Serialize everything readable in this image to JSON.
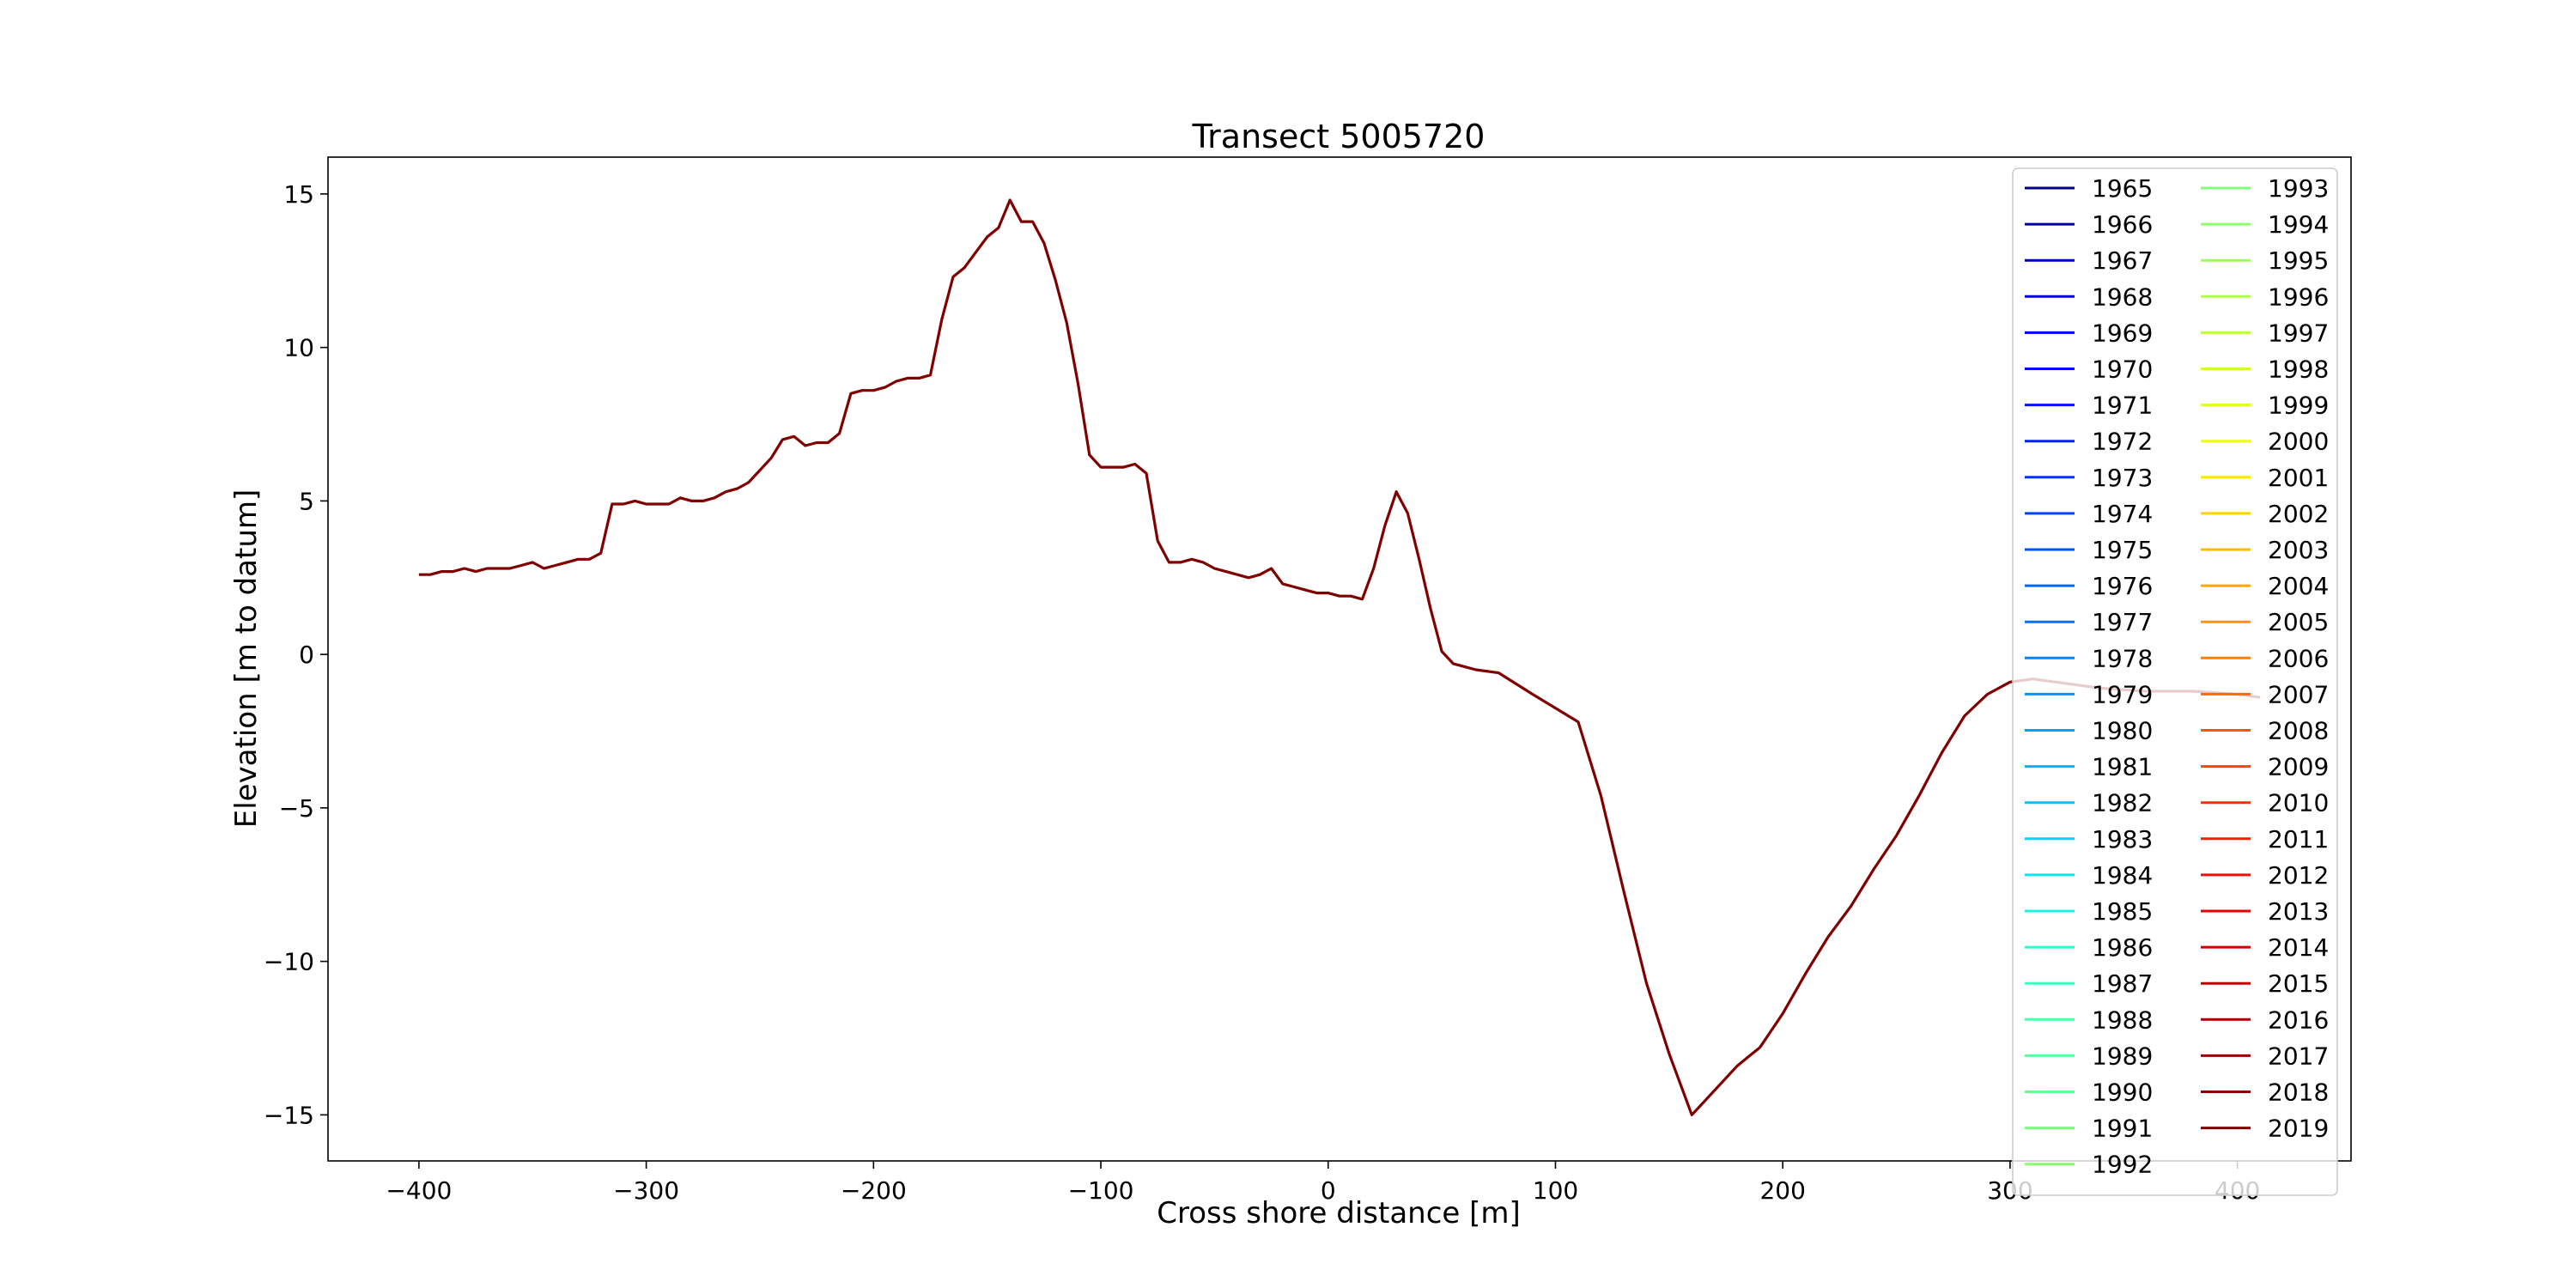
{
  "chart_data": {
    "type": "line",
    "title": "Transect 5005720",
    "xlabel": "Cross shore distance [m]",
    "ylabel": "Elevation [m to datum]",
    "xlim": [
      -440,
      450
    ],
    "ylim": [
      -16.5,
      16.2
    ],
    "xticks": [
      -400,
      -300,
      -200,
      -100,
      0,
      100,
      200,
      300,
      400
    ],
    "yticks": [
      15,
      10,
      5,
      0,
      -5,
      -10,
      -15
    ],
    "xtick_labels": [
      "−400",
      "−300",
      "−200",
      "−100",
      "0",
      "100",
      "200",
      "300",
      "400"
    ],
    "ytick_labels": [
      "15",
      "10",
      "5",
      "0",
      "−5",
      "−10",
      "−15"
    ],
    "legend_position": "top-right",
    "legend_columns": 2,
    "series": [
      {
        "name": "1965",
        "color": "#000080"
      },
      {
        "name": "1966",
        "color": "#00009e"
      },
      {
        "name": "1967",
        "color": "#0000bf"
      },
      {
        "name": "1968",
        "color": "#0000df"
      },
      {
        "name": "1969",
        "color": "#0000ff"
      },
      {
        "name": "1970",
        "color": "#0008ff"
      },
      {
        "name": "1971",
        "color": "#0014ff"
      },
      {
        "name": "1972",
        "color": "#0024ff"
      },
      {
        "name": "1973",
        "color": "#0034ff"
      },
      {
        "name": "1974",
        "color": "#0044ff"
      },
      {
        "name": "1975",
        "color": "#0054ff"
      },
      {
        "name": "1976",
        "color": "#0064ff"
      },
      {
        "name": "1977",
        "color": "#0074ff"
      },
      {
        "name": "1978",
        "color": "#0084ff"
      },
      {
        "name": "1979",
        "color": "#0094ff"
      },
      {
        "name": "1980",
        "color": "#00a4ff"
      },
      {
        "name": "1981",
        "color": "#00b4ff"
      },
      {
        "name": "1982",
        "color": "#00c4ff"
      },
      {
        "name": "1983",
        "color": "#00d4ff"
      },
      {
        "name": "1984",
        "color": "#0ce4ef"
      },
      {
        "name": "1985",
        "color": "#1cf4df"
      },
      {
        "name": "1986",
        "color": "#29ffce"
      },
      {
        "name": "1987",
        "color": "#39ffbe"
      },
      {
        "name": "1988",
        "color": "#49ffad"
      },
      {
        "name": "1989",
        "color": "#59ff9d"
      },
      {
        "name": "1990",
        "color": "#69ff8d"
      },
      {
        "name": "1991",
        "color": "#79ff7d"
      },
      {
        "name": "1992",
        "color": "#89ff6d"
      },
      {
        "name": "1993",
        "color": "#7dff7a"
      },
      {
        "name": "1994",
        "color": "#8dff6a"
      },
      {
        "name": "1995",
        "color": "#9dff5a"
      },
      {
        "name": "1996",
        "color": "#adff4a"
      },
      {
        "name": "1997",
        "color": "#beff39"
      },
      {
        "name": "1998",
        "color": "#ceff29"
      },
      {
        "name": "1999",
        "color": "#dfff18"
      },
      {
        "name": "2000",
        "color": "#efff08"
      },
      {
        "name": "2001",
        "color": "#ffe600"
      },
      {
        "name": "2002",
        "color": "#ffd200"
      },
      {
        "name": "2003",
        "color": "#ffbd00"
      },
      {
        "name": "2004",
        "color": "#ffa900"
      },
      {
        "name": "2005",
        "color": "#ff9400"
      },
      {
        "name": "2006",
        "color": "#ff8000"
      },
      {
        "name": "2007",
        "color": "#ff6b00"
      },
      {
        "name": "2008",
        "color": "#ff5700"
      },
      {
        "name": "2009",
        "color": "#ff4300"
      },
      {
        "name": "2010",
        "color": "#ff2e00"
      },
      {
        "name": "2011",
        "color": "#ff1a00"
      },
      {
        "name": "2012",
        "color": "#f50b00"
      },
      {
        "name": "2013",
        "color": "#e40000"
      },
      {
        "name": "2014",
        "color": "#d20000"
      },
      {
        "name": "2015",
        "color": "#c00000"
      },
      {
        "name": "2016",
        "color": "#ae0000"
      },
      {
        "name": "2017",
        "color": "#9c0000"
      },
      {
        "name": "2018",
        "color": "#8a0000"
      },
      {
        "name": "2019",
        "color": "#800000"
      }
    ],
    "profile": {
      "color": "#800000",
      "x": [
        -400,
        -395,
        -390,
        -385,
        -380,
        -375,
        -370,
        -365,
        -360,
        -355,
        -350,
        -345,
        -340,
        -335,
        -330,
        -325,
        -320,
        -315,
        -310,
        -305,
        -300,
        -295,
        -290,
        -285,
        -280,
        -275,
        -270,
        -265,
        -260,
        -255,
        -250,
        -245,
        -240,
        -235,
        -230,
        -225,
        -220,
        -215,
        -210,
        -205,
        -200,
        -195,
        -190,
        -185,
        -180,
        -175,
        -170,
        -165,
        -160,
        -155,
        -150,
        -145,
        -140,
        -135,
        -130,
        -125,
        -120,
        -115,
        -110,
        -105,
        -100,
        -95,
        -90,
        -85,
        -80,
        -75,
        -70,
        -65,
        -60,
        -55,
        -50,
        -45,
        -40,
        -35,
        -30,
        -25,
        -20,
        -15,
        -10,
        -5,
        0,
        5,
        10,
        15,
        20,
        25,
        30,
        35,
        40,
        45,
        50,
        55,
        60,
        65,
        75,
        90,
        110,
        120,
        130,
        140,
        150,
        160,
        170,
        180,
        190,
        200,
        210,
        220,
        230,
        240,
        250,
        260,
        270,
        280,
        290,
        300,
        310,
        320,
        340,
        360,
        380,
        400,
        410
      ],
      "y": [
        2.6,
        2.6,
        2.7,
        2.7,
        2.8,
        2.7,
        2.8,
        2.8,
        2.8,
        2.9,
        3.0,
        2.8,
        2.9,
        3.0,
        3.1,
        3.1,
        3.3,
        4.9,
        4.9,
        5.0,
        4.9,
        4.9,
        4.9,
        5.1,
        5.0,
        5.0,
        5.1,
        5.3,
        5.4,
        5.6,
        6.0,
        6.4,
        7.0,
        7.1,
        6.8,
        6.9,
        6.9,
        7.2,
        8.5,
        8.6,
        8.6,
        8.7,
        8.9,
        9.0,
        9.0,
        9.1,
        10.9,
        12.3,
        12.6,
        13.1,
        13.6,
        13.9,
        14.8,
        14.1,
        14.1,
        13.4,
        12.2,
        10.8,
        8.8,
        6.5,
        6.1,
        6.1,
        6.1,
        6.2,
        5.9,
        3.7,
        3.0,
        3.0,
        3.1,
        3.0,
        2.8,
        2.7,
        2.6,
        2.5,
        2.6,
        2.8,
        2.3,
        2.2,
        2.1,
        2.0,
        2.0,
        1.9,
        1.9,
        1.8,
        2.8,
        4.2,
        5.3,
        4.6,
        3.1,
        1.5,
        0.1,
        -0.3,
        -0.4,
        -0.5,
        -0.6,
        -1.3,
        -2.2,
        -4.6,
        -7.7,
        -10.7,
        -13.0,
        -15.0,
        -14.2,
        -13.4,
        -12.8,
        -11.7,
        -10.4,
        -9.2,
        -8.2,
        -7.0,
        -5.9,
        -4.6,
        -3.2,
        -2.0,
        -1.3,
        -0.9,
        -0.8,
        -0.9,
        -1.1,
        -1.2,
        -1.2,
        -1.3,
        -1.4
      ]
    }
  }
}
